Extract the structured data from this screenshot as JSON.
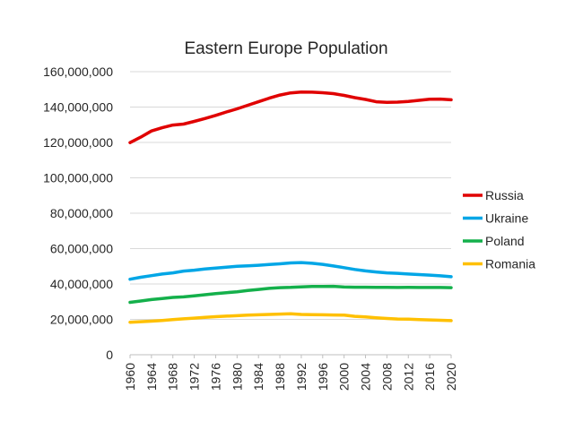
{
  "chart_data": {
    "type": "line",
    "title": "Eastern Europe Population",
    "xlabel": "",
    "ylabel": "",
    "ylim": [
      0,
      160000000
    ],
    "y_ticks": [
      0,
      20000000,
      40000000,
      60000000,
      80000000,
      100000000,
      120000000,
      140000000,
      160000000
    ],
    "y_tick_labels": [
      "0",
      "20,000,000",
      "40,000,000",
      "60,000,000",
      "80,000,000",
      "100,000,000",
      "120,000,000",
      "140,000,000",
      "160,000,000"
    ],
    "x_ticks": [
      1960,
      1964,
      1968,
      1972,
      1976,
      1980,
      1984,
      1988,
      1992,
      1996,
      2000,
      2004,
      2008,
      2012,
      2016,
      2020
    ],
    "x_tick_labels": [
      "1960",
      "1964",
      "1968",
      "1972",
      "1976",
      "1980",
      "1984",
      "1988",
      "1992",
      "1996",
      "2000",
      "2004",
      "2008",
      "2012",
      "2016",
      "2020"
    ],
    "grid": "horizontal",
    "legend_position": "right",
    "x": [
      1960,
      1962,
      1964,
      1966,
      1968,
      1970,
      1972,
      1974,
      1976,
      1978,
      1980,
      1982,
      1984,
      1986,
      1988,
      1990,
      1992,
      1994,
      1996,
      1998,
      2000,
      2002,
      2004,
      2006,
      2008,
      2010,
      2012,
      2014,
      2016,
      2018,
      2020
    ],
    "series": [
      {
        "name": "Russia",
        "color": "#e00000",
        "values": [
          119900000,
          123000000,
          126500000,
          128300000,
          129800000,
          130400000,
          131900000,
          133500000,
          135300000,
          137200000,
          139000000,
          141000000,
          143000000,
          145000000,
          146800000,
          148000000,
          148500000,
          148400000,
          148100000,
          147600000,
          146600000,
          145300000,
          144300000,
          143000000,
          142700000,
          142800000,
          143200000,
          143800000,
          144400000,
          144500000,
          144100000
        ]
      },
      {
        "name": "Ukraine",
        "color": "#00a6e6",
        "values": [
          42700000,
          43800000,
          44700000,
          45600000,
          46300000,
          47300000,
          47800000,
          48500000,
          49000000,
          49500000,
          50000000,
          50300000,
          50600000,
          51000000,
          51400000,
          51900000,
          52100000,
          51700000,
          51100000,
          50200000,
          49200000,
          48200000,
          47400000,
          46800000,
          46300000,
          46000000,
          45600000,
          45300000,
          45000000,
          44600000,
          44100000
        ]
      },
      {
        "name": "Poland",
        "color": "#14b04b",
        "values": [
          29600000,
          30400000,
          31200000,
          31800000,
          32400000,
          32700000,
          33300000,
          33900000,
          34600000,
          35100000,
          35600000,
          36300000,
          36900000,
          37500000,
          37900000,
          38100000,
          38400000,
          38600000,
          38600000,
          38700000,
          38300000,
          38200000,
          38200000,
          38100000,
          38100000,
          38000000,
          38100000,
          38000000,
          38000000,
          38000000,
          37900000
        ]
      },
      {
        "name": "Romania",
        "color": "#ffc000",
        "values": [
          18400000,
          18700000,
          19000000,
          19400000,
          19900000,
          20300000,
          20700000,
          21100000,
          21500000,
          21800000,
          22100000,
          22400000,
          22600000,
          22800000,
          23000000,
          23200000,
          22800000,
          22700000,
          22600000,
          22500000,
          22400000,
          21700000,
          21400000,
          20900000,
          20500000,
          20200000,
          20100000,
          19900000,
          19700000,
          19500000,
          19300000
        ]
      }
    ]
  }
}
